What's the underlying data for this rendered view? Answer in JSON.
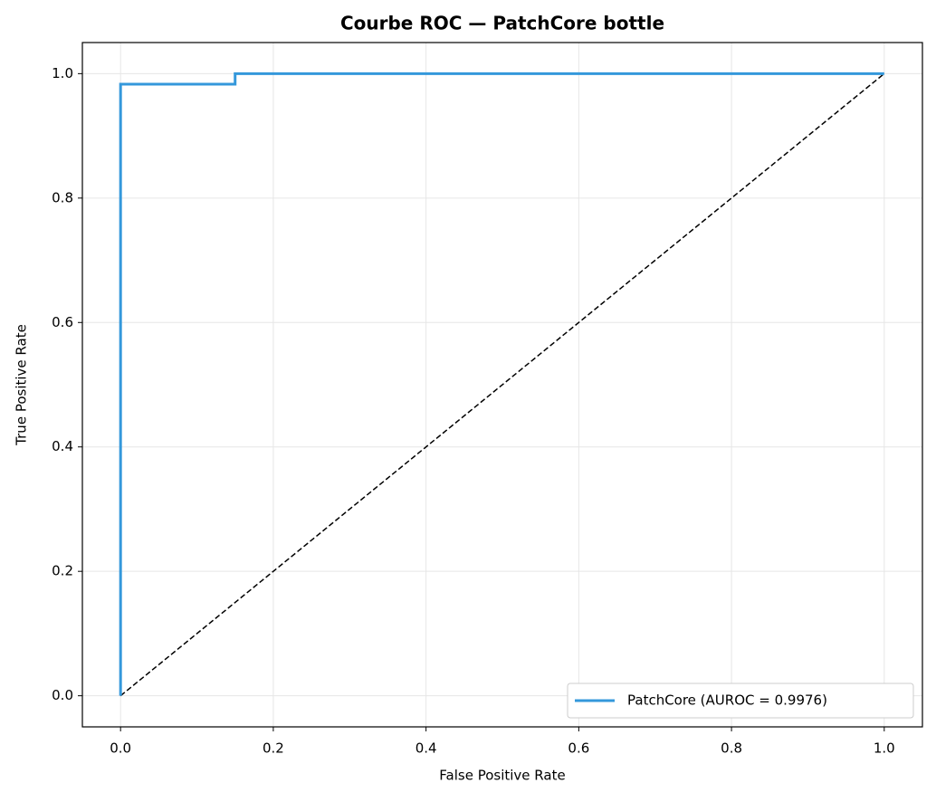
{
  "chart_data": {
    "type": "line",
    "title": "Courbe ROC — PatchCore bottle",
    "xlabel": "False Positive Rate",
    "ylabel": "True Positive Rate",
    "series": [
      {
        "name": "PatchCore (AUROC = 0.9976)",
        "color": "#3498db",
        "x": [
          0,
          0,
          0.15,
          0.15,
          1
        ],
        "values": [
          0,
          0.983,
          0.983,
          1,
          1
        ]
      }
    ],
    "diagonal": {
      "x": [
        0,
        1
      ],
      "y": [
        0,
        1
      ],
      "color": "#000000"
    },
    "xlim": [
      -0.05,
      1.05
    ],
    "ylim": [
      -0.05,
      1.05
    ],
    "xticks": [
      {
        "value": 0,
        "label": "0.0"
      },
      0.2,
      0.4,
      0.6,
      0.8,
      {
        "value": 1,
        "label": "1.0"
      }
    ],
    "yticks": [
      {
        "value": 0,
        "label": "0.0"
      },
      0.2,
      0.4,
      0.6,
      0.8,
      {
        "value": 1,
        "label": "1.0"
      }
    ],
    "grid": true,
    "legend": "lower right"
  }
}
